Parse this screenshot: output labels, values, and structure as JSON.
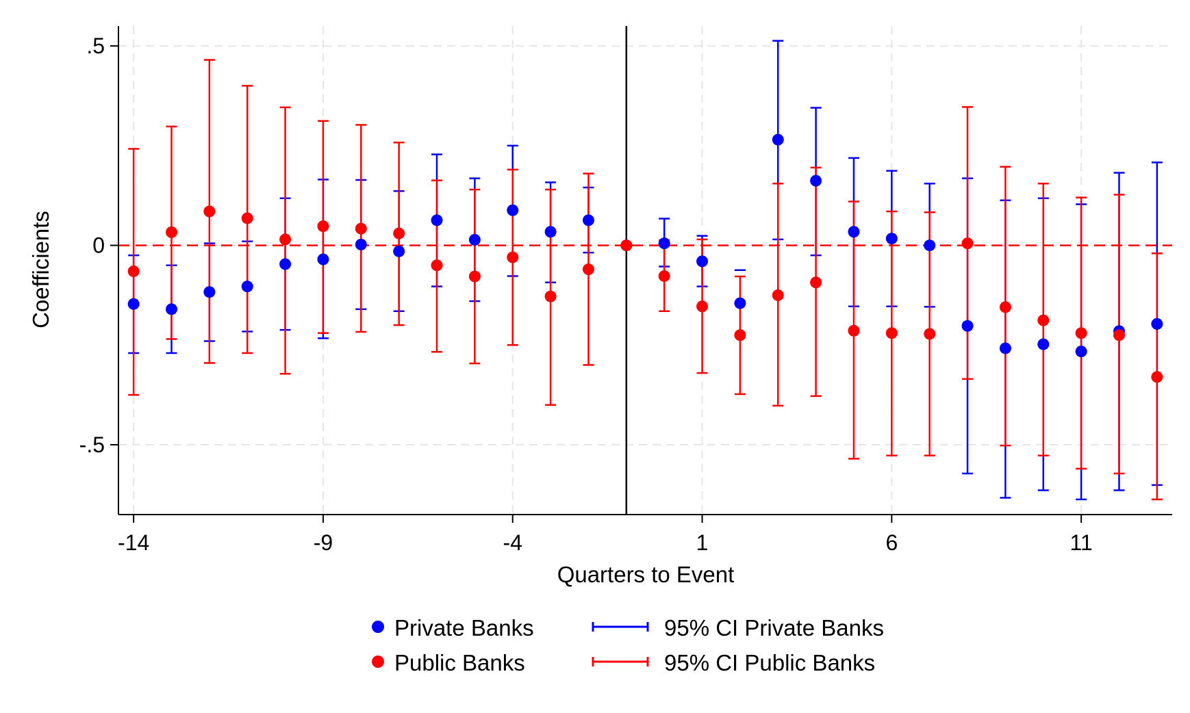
{
  "chart_data": {
    "type": "scatter",
    "title": "",
    "xlabel": "Quarters to Event",
    "ylabel": "Coefficients",
    "xlim": [
      -14.4,
      13.4
    ],
    "ylim": [
      -0.675,
      0.55
    ],
    "x_ticks": [
      {
        "value": -14,
        "label": "-14"
      },
      {
        "value": -9,
        "label": "-9"
      },
      {
        "value": -4,
        "label": "-4"
      },
      {
        "value": 1,
        "label": "1"
      },
      {
        "value": 6,
        "label": "6"
      },
      {
        "value": 11,
        "label": "11"
      }
    ],
    "y_ticks": [
      {
        "value": 0.5,
        "label": ".5"
      },
      {
        "value": 0,
        "label": "0"
      },
      {
        "value": -0.5,
        "label": "-.5"
      }
    ],
    "grid": true,
    "event_line_x": -1,
    "zero_reference_line": 0,
    "legend_position": "bottom",
    "legend": {
      "private_points": "Private Banks",
      "public_points": "Public Banks",
      "private_ci": "95% CI Private Banks",
      "public_ci": "95% CI Public Banks"
    },
    "x": [
      -14,
      -13,
      -12,
      -11,
      -10,
      -9,
      -8,
      -7,
      -6,
      -5,
      -4,
      -3,
      -2,
      -1,
      0,
      1,
      2,
      3,
      4,
      5,
      6,
      7,
      8,
      9,
      10,
      11,
      12,
      13
    ],
    "series": [
      {
        "name": "Private Banks",
        "color": "#0000ff",
        "values": [
          -0.147,
          -0.16,
          -0.117,
          -0.103,
          -0.047,
          -0.035,
          0.002,
          -0.015,
          0.063,
          0.014,
          0.088,
          0.034,
          0.063,
          0.0,
          0.005,
          -0.04,
          -0.145,
          0.265,
          0.162,
          0.034,
          0.017,
          0.0,
          -0.202,
          -0.258,
          -0.248,
          -0.266,
          -0.215,
          -0.197
        ],
        "ci_lower": [
          -0.27,
          -0.27,
          -0.24,
          -0.216,
          -0.212,
          -0.233,
          -0.16,
          -0.165,
          -0.103,
          -0.14,
          -0.077,
          -0.093,
          -0.018,
          null,
          -0.053,
          -0.103,
          -0.062,
          0.015,
          -0.025,
          -0.153,
          -0.153,
          -0.154,
          -0.572,
          -0.633,
          -0.614,
          -0.637,
          -0.614,
          -0.601
        ],
        "ci_upper": [
          -0.025,
          -0.05,
          0.005,
          0.01,
          0.118,
          0.165,
          0.164,
          0.136,
          0.228,
          0.168,
          0.25,
          0.158,
          0.145,
          null,
          0.067,
          0.024,
          -0.062,
          0.513,
          0.345,
          0.219,
          0.187,
          0.155,
          0.168,
          0.113,
          0.118,
          0.103,
          0.182,
          0.208
        ]
      },
      {
        "name": "Public Banks",
        "color": "#ff0000",
        "values": [
          -0.065,
          0.033,
          0.085,
          0.068,
          0.015,
          0.048,
          0.042,
          0.03,
          -0.05,
          -0.078,
          -0.03,
          -0.128,
          -0.06,
          0.0,
          -0.077,
          -0.153,
          -0.225,
          -0.125,
          -0.093,
          -0.214,
          -0.22,
          -0.222,
          0.005,
          -0.155,
          -0.188,
          -0.22,
          -0.225,
          -0.33
        ],
        "ci_lower": [
          -0.375,
          -0.235,
          -0.295,
          -0.27,
          -0.322,
          -0.22,
          -0.217,
          -0.2,
          -0.267,
          -0.296,
          -0.25,
          -0.4,
          -0.3,
          null,
          -0.165,
          -0.32,
          -0.373,
          -0.402,
          -0.378,
          -0.535,
          -0.527,
          -0.527,
          -0.335,
          -0.502,
          -0.527,
          -0.56,
          -0.572,
          -0.637
        ],
        "ci_upper": [
          0.242,
          0.298,
          0.465,
          0.4,
          0.346,
          0.312,
          0.302,
          0.258,
          0.163,
          0.14,
          0.19,
          0.14,
          0.18,
          null,
          0.013,
          0.015,
          -0.078,
          0.155,
          0.195,
          0.11,
          0.085,
          0.083,
          0.347,
          0.197,
          0.155,
          0.12,
          0.127,
          -0.02
        ]
      }
    ]
  }
}
